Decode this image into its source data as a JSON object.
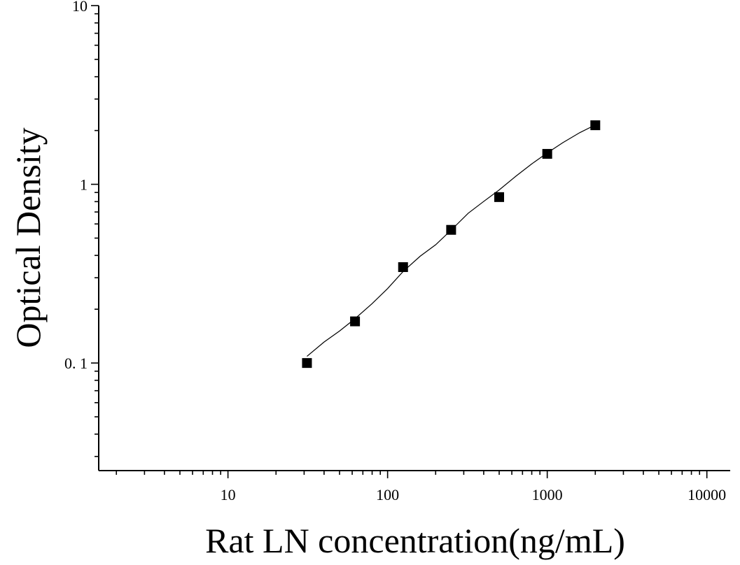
{
  "chart_data": {
    "type": "scatter",
    "xlabel": "Rat LN concentration(ng/mL)",
    "ylabel": "Optical Density",
    "xscale": "log",
    "yscale": "log",
    "xlim": [
      1.55,
      14000
    ],
    "ylim": [
      0.025,
      10
    ],
    "xticks": [
      {
        "value": 10,
        "label": "10"
      },
      {
        "value": 100,
        "label": "100"
      },
      {
        "value": 1000,
        "label": "1000"
      },
      {
        "value": 10000,
        "label": "10000"
      }
    ],
    "yticks": [
      {
        "value": 0.1,
        "label": "0. 1"
      },
      {
        "value": 1,
        "label": "1"
      },
      {
        "value": 10,
        "label": "10"
      }
    ],
    "grid": false,
    "legend": "none",
    "marker_color": "#000000",
    "series": [
      {
        "marker": "square",
        "x": [
          31.25,
          62.5,
          125,
          250,
          500,
          1000,
          2000
        ],
        "y": [
          0.1,
          0.171,
          0.344,
          0.556,
          0.848,
          1.48,
          2.14
        ]
      }
    ],
    "fit_curve": {
      "x": [
        31.25,
        40,
        50,
        62.5,
        80,
        100,
        125,
        160,
        200,
        250,
        320,
        400,
        500,
        640,
        800,
        1000,
        1250,
        1600,
        2000
      ],
      "y": [
        0.109,
        0.131,
        0.151,
        0.177,
        0.215,
        0.261,
        0.325,
        0.396,
        0.459,
        0.554,
        0.689,
        0.802,
        0.93,
        1.115,
        1.301,
        1.497,
        1.708,
        1.946,
        2.15
      ]
    }
  }
}
